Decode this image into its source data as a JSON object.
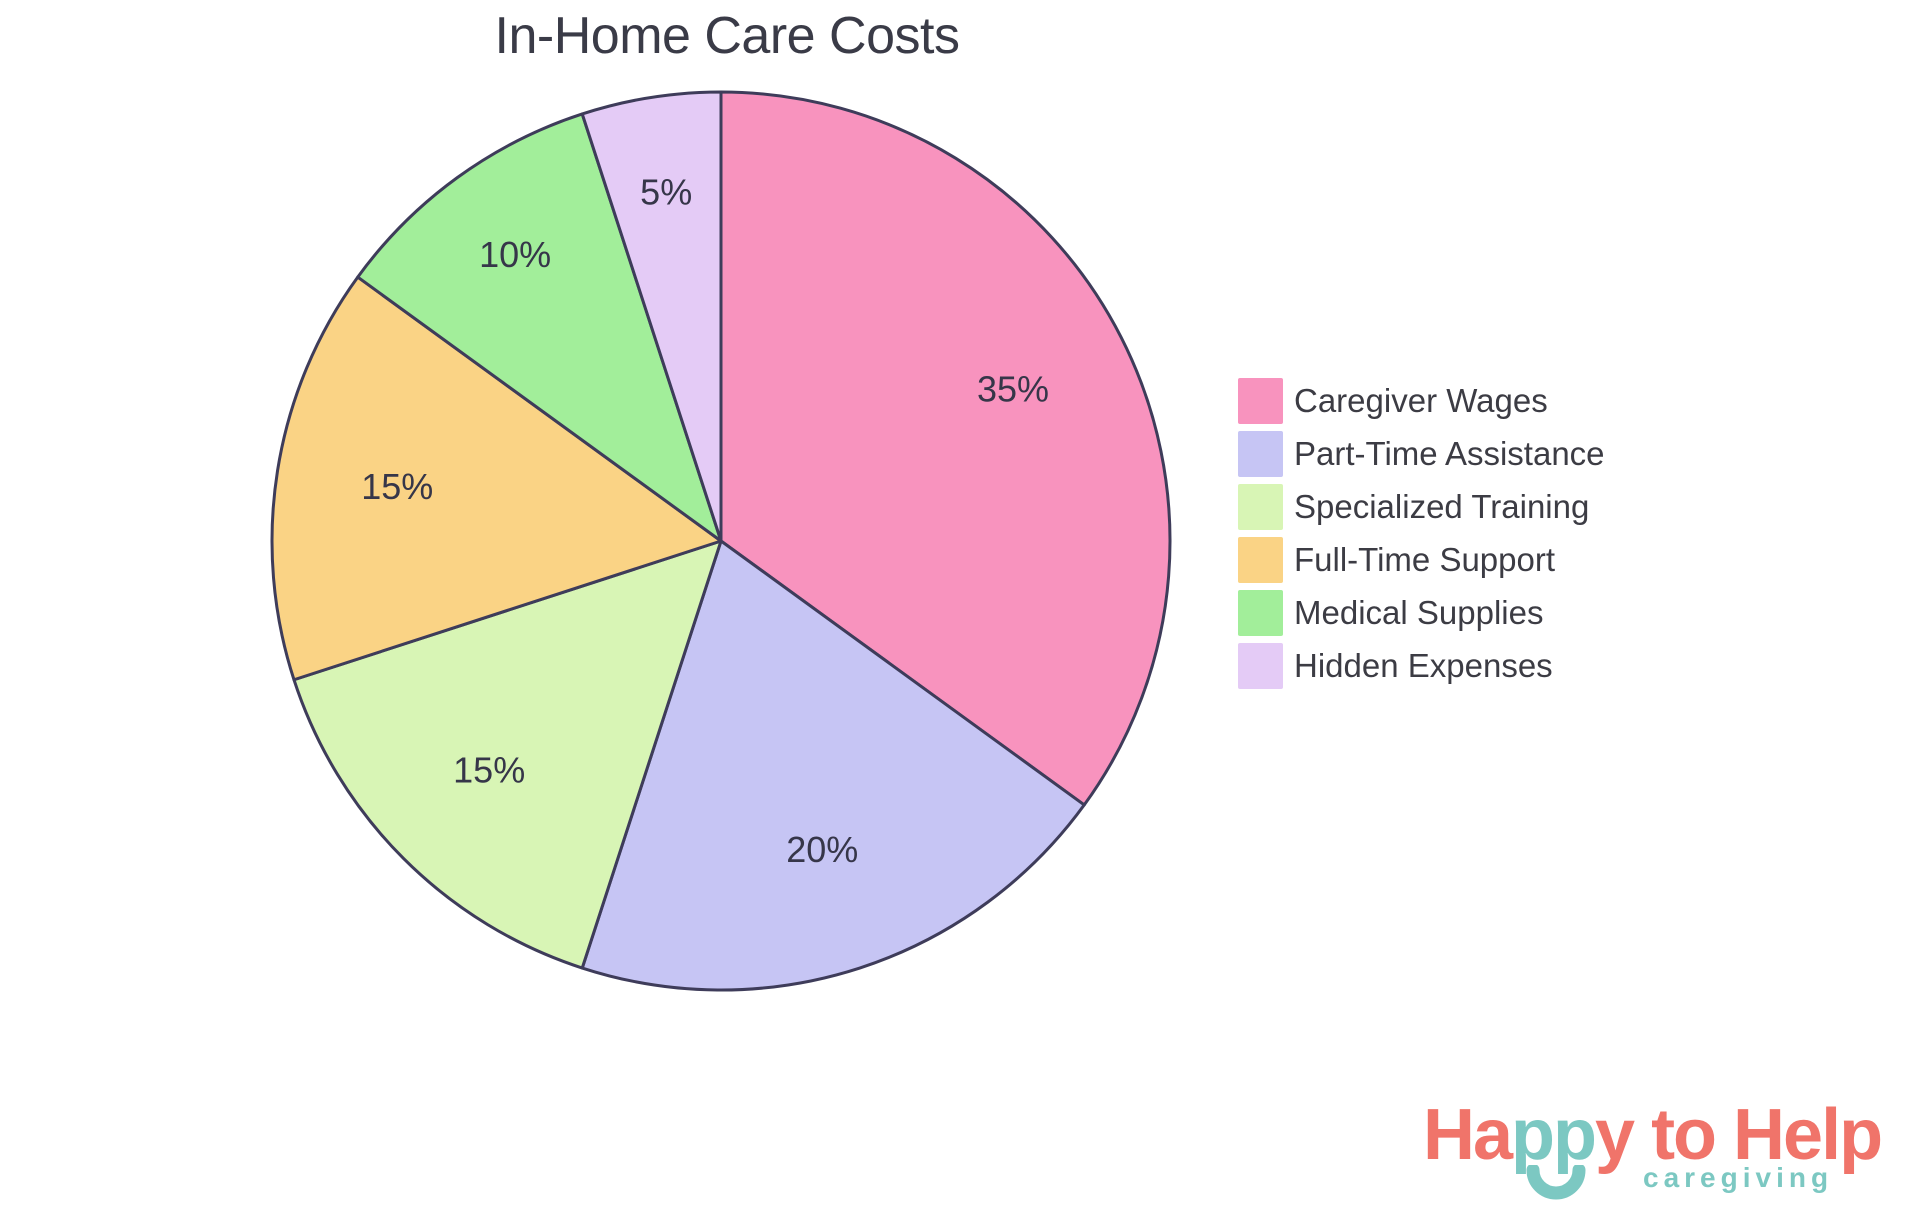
{
  "title": "In-Home Care Costs",
  "chart_data": {
    "type": "pie",
    "title": "In-Home Care Costs",
    "start_angle": "12 o'clock",
    "direction": "clockwise",
    "legend_position": "right",
    "outline_color": "#3E3C5A",
    "label_color": "#363649",
    "slices": [
      {
        "label": "Caregiver Wages",
        "value": 35,
        "pct_label": "35%",
        "color": "#F893BE"
      },
      {
        "label": "Part-Time Assistance",
        "value": 20,
        "pct_label": "20%",
        "color": "#C6C5F4"
      },
      {
        "label": "Specialized Training",
        "value": 15,
        "pct_label": "15%",
        "color": "#D8F5B5"
      },
      {
        "label": "Full-Time Support",
        "value": 15,
        "pct_label": "15%",
        "color": "#FAD385"
      },
      {
        "label": "Medical Supplies",
        "value": 10,
        "pct_label": "10%",
        "color": "#A2EE9A"
      },
      {
        "label": "Hidden Expenses",
        "value": 5,
        "pct_label": "5%",
        "color": "#E4CBF6"
      }
    ]
  },
  "branding": {
    "word_start": "Ha",
    "word_mid": "pp",
    "word_end": "y to Help",
    "tagline": "caregiving",
    "coral": "#F0746A",
    "teal": "#7CC8C2"
  }
}
